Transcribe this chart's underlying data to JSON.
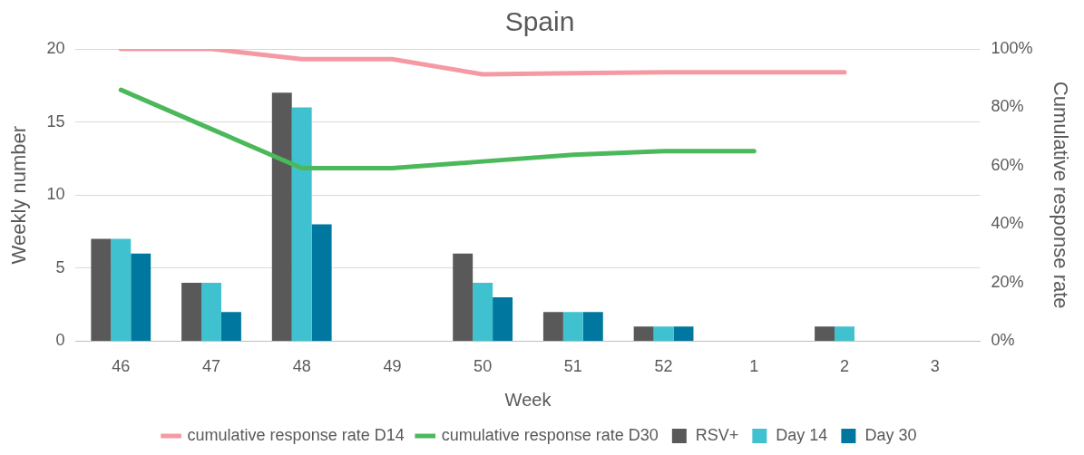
{
  "chart_data": {
    "type": "bar",
    "title": "Spain",
    "xlabel": "Week",
    "ylabel": "Weekly number",
    "y2label": "Cumulative response rate",
    "categories": [
      "46",
      "47",
      "48",
      "49",
      "50",
      "51",
      "52",
      "1",
      "2",
      "3"
    ],
    "series": [
      {
        "name": "RSV+",
        "color": "#595959",
        "values": [
          7,
          4,
          17,
          0,
          6,
          2,
          1,
          0,
          1,
          0
        ]
      },
      {
        "name": "Day 14",
        "color": "#3fc1cf",
        "values": [
          7,
          4,
          16,
          0,
          4,
          2,
          1,
          0,
          1,
          0
        ]
      },
      {
        "name": "Day 30",
        "color": "#00779e",
        "values": [
          6,
          2,
          8,
          0,
          3,
          2,
          1,
          0,
          0,
          0
        ]
      },
      {
        "name": "cumulative response rate D14",
        "type": "line",
        "axis": "y2",
        "color": "#f59aa3",
        "values": [
          100,
          100,
          96.5,
          96.5,
          91.3,
          91.7,
          92,
          92,
          92,
          null
        ]
      },
      {
        "name": "cumulative response rate D30",
        "type": "line",
        "axis": "y2",
        "color": "#4cb85c",
        "values": [
          86,
          72.6,
          59.2,
          59.2,
          61.5,
          63.8,
          65,
          65,
          null,
          null
        ]
      }
    ],
    "ylim": [
      0,
      20
    ],
    "yticks": [
      0,
      5,
      10,
      15,
      20
    ],
    "y2lim": [
      0,
      100
    ],
    "y2ticks": [
      {
        "value": 0,
        "label": "0%"
      },
      {
        "value": 20,
        "label": "20%"
      },
      {
        "value": 40,
        "label": "40%"
      },
      {
        "value": 60,
        "label": "60%"
      },
      {
        "value": 80,
        "label": "80%"
      },
      {
        "value": 100,
        "label": "100%"
      }
    ],
    "grid": "y",
    "legend": "bottom",
    "marker": "none",
    "line_style": "solid"
  }
}
